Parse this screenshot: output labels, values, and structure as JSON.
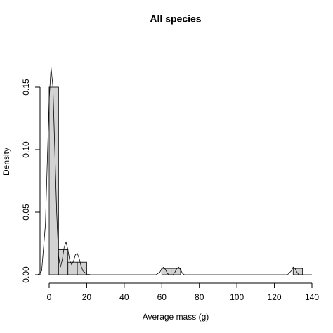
{
  "chart_data": {
    "type": "histogram",
    "title": "All species",
    "xlabel": "Average mass (g)",
    "ylabel": "Density",
    "bins": [
      0,
      5,
      10,
      15,
      20,
      25,
      30,
      35,
      40,
      45,
      50,
      55,
      60,
      65,
      70,
      75,
      80,
      85,
      90,
      95,
      100,
      105,
      110,
      115,
      120,
      125,
      130,
      135
    ],
    "values": [
      0.15,
      0.02,
      0.01,
      0.01,
      0,
      0,
      0,
      0,
      0,
      0,
      0,
      0,
      0.005,
      0.005,
      0,
      0,
      0,
      0,
      0,
      0,
      0,
      0,
      0,
      0,
      0,
      0,
      0.005
    ],
    "color": "#d3d3d3",
    "density": {
      "x": [
        -6,
        -4,
        -2,
        -1,
        0,
        1,
        2,
        3,
        4,
        5,
        6,
        7,
        8,
        9,
        10,
        11,
        12,
        13,
        14,
        15,
        16,
        17,
        18,
        20,
        22,
        57,
        59,
        60,
        61,
        62,
        63,
        64,
        65,
        66,
        67,
        68,
        69,
        70,
        71,
        72,
        127,
        129,
        130,
        131,
        132,
        133,
        140
      ],
      "values": [
        0,
        0.003,
        0.04,
        0.09,
        0.14,
        0.166,
        0.15,
        0.1,
        0.05,
        0.015,
        0.006,
        0.012,
        0.022,
        0.026,
        0.02,
        0.011,
        0.008,
        0.011,
        0.016,
        0.017,
        0.013,
        0.007,
        0.003,
        0.0005,
        0,
        0,
        0.002,
        0.005,
        0.006,
        0.004,
        0.001,
        0,
        0,
        0,
        0.002,
        0.005,
        0.006,
        0.004,
        0.001,
        0,
        0,
        0.003,
        0.006,
        0.005,
        0.002,
        0,
        0
      ]
    },
    "xlim": [
      0,
      140
    ],
    "xticks": [
      0,
      20,
      40,
      60,
      80,
      100,
      120,
      140
    ],
    "ylim": [
      0,
      0.15
    ],
    "yticks": [
      {
        "value": 0,
        "label": "0.00"
      },
      {
        "value": 0.05,
        "label": "0.05"
      },
      {
        "value": 0.1,
        "label": "0.10"
      },
      {
        "value": 0.15,
        "label": "0.15"
      }
    ]
  }
}
